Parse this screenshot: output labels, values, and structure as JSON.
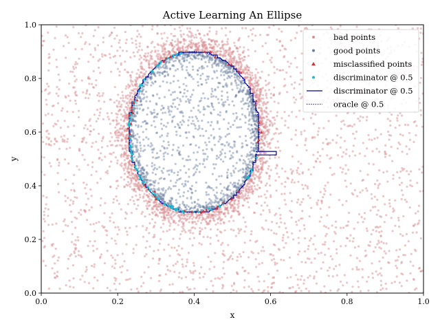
{
  "chart_data": {
    "type": "scatter",
    "title": "Active Learning An Ellipse",
    "xlabel": "x",
    "ylabel": "y",
    "xlim": [
      0.0,
      1.0
    ],
    "ylim": [
      0.0,
      1.0
    ],
    "x_ticks": [
      "0.0",
      "0.2",
      "0.4",
      "0.6",
      "0.8",
      "1.0"
    ],
    "y_ticks": [
      "0.0",
      "0.2",
      "0.4",
      "0.6",
      "0.8",
      "1.0"
    ],
    "grid": false,
    "legend_position": "top-right",
    "ellipse": {
      "center": [
        0.4,
        0.6
      ],
      "radius_x": 0.17,
      "radius_y": 0.3
    },
    "discriminator_bump": {
      "y_range": [
        0.515,
        0.528
      ],
      "x_extent": 0.615
    },
    "point_counts": {
      "bad_background": 2300,
      "bad_ring": 1500,
      "good": 1600,
      "misclassified": 45,
      "discriminator_points": 120
    },
    "series": [
      {
        "name": "bad points",
        "kind": "scatter",
        "marker": "circle",
        "color": "#d98f94"
      },
      {
        "name": "good points",
        "kind": "scatter",
        "marker": "circle",
        "color": "#6b7ea0"
      },
      {
        "name": "misclassified points",
        "kind": "scatter",
        "marker": "triangle",
        "color": "#d0323a"
      },
      {
        "name": "discriminator @ 0.5",
        "kind": "scatter",
        "marker": "circle",
        "color": "#17becf"
      },
      {
        "name": "discriminator @ 0.5",
        "kind": "line",
        "style": "solid",
        "color": "#00008b"
      },
      {
        "name": "oracle @ 0.5",
        "kind": "line",
        "style": "dotted",
        "color": "#0000cd"
      }
    ]
  }
}
